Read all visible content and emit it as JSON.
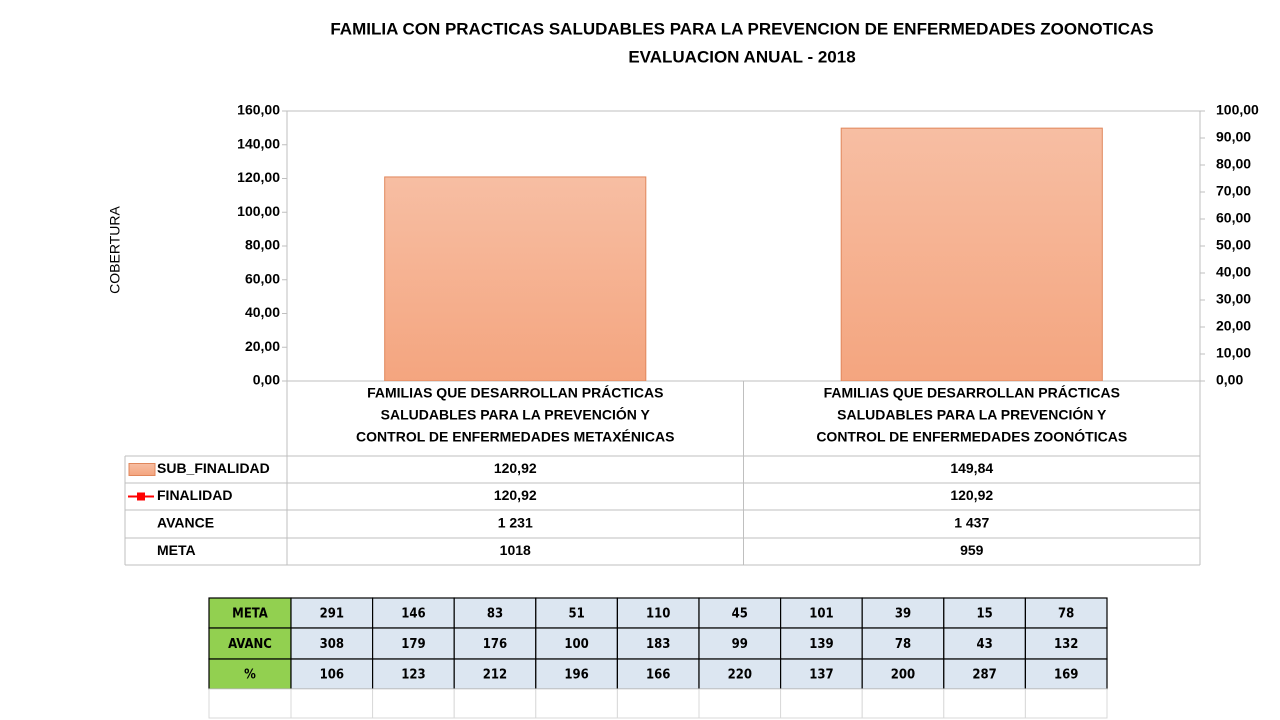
{
  "chart_data": {
    "type": "bar",
    "title": "FAMILIA CON PRACTICAS SALUDABLES  PARA LA PREVENCION DE ENFERMEDADES ZOONOTICAS",
    "subtitle": "EVALUACION ANUAL - 2018",
    "y_label": "COBERTURA",
    "categories": [
      [
        "FAMILIAS QUE DESARROLLAN PRÁCTICAS",
        "SALUDABLES PARA LA PREVENCIÓN Y",
        "CONTROL DE ENFERMEDADES METAXÉNICAS"
      ],
      [
        "FAMILIAS QUE DESARROLLAN PRÁCTICAS",
        "SALUDABLES PARA LA PREVENCIÓN Y",
        "CONTROL DE ENFERMEDADES ZOONÓTICAS"
      ]
    ],
    "series": [
      {
        "name": "SUB_FINALIDAD",
        "type": "bar",
        "color": "#f4a57f",
        "values": [
          120.92,
          149.84
        ],
        "value_labels": [
          "120,92",
          "149,84"
        ]
      },
      {
        "name": "FINALIDAD",
        "type": "line",
        "axis": "y2",
        "color": "#ff0000",
        "values": [
          120.92,
          120.92
        ],
        "value_labels": [
          "120,92",
          "120,92"
        ]
      }
    ],
    "table_rows": [
      {
        "name": "AVANCE",
        "values": [
          1231,
          1437
        ],
        "value_labels": [
          "1 231",
          "1 437"
        ]
      },
      {
        "name": "META",
        "values": [
          1018,
          959
        ]
      }
    ],
    "ylim": [
      0,
      160
    ],
    "yticks": [
      {
        "value": 0,
        "label": "0,00"
      },
      {
        "value": 20,
        "label": "20,00"
      },
      {
        "value": 40,
        "label": "40,00"
      },
      {
        "value": 60,
        "label": "60,00"
      },
      {
        "value": 80,
        "label": "80,00"
      },
      {
        "value": 100,
        "label": "100,00"
      },
      {
        "value": 120,
        "label": "120,00"
      },
      {
        "value": 140,
        "label": "140,00"
      },
      {
        "value": 160,
        "label": "160,00"
      }
    ],
    "y2lim": [
      0,
      100
    ],
    "y2ticks": [
      {
        "value": 0,
        "label": "0,00"
      },
      {
        "value": 10,
        "label": "10,00"
      },
      {
        "value": 20,
        "label": "20,00"
      },
      {
        "value": 30,
        "label": "30,00"
      },
      {
        "value": 40,
        "label": "40,00"
      },
      {
        "value": 50,
        "label": "50,00"
      },
      {
        "value": 60,
        "label": "60,00"
      },
      {
        "value": 70,
        "label": "70,00"
      },
      {
        "value": 80,
        "label": "80,00"
      },
      {
        "value": 90,
        "label": "90,00"
      },
      {
        "value": 100,
        "label": "100,00"
      }
    ]
  },
  "table": {
    "rows": [
      [
        "META",
        291,
        146,
        83,
        51,
        110,
        45,
        101,
        39,
        15,
        78
      ],
      [
        "AVANC",
        308,
        179,
        176,
        100,
        183,
        99,
        139,
        78,
        43,
        132
      ],
      [
        "%",
        106,
        123,
        212,
        196,
        166,
        220,
        137,
        200,
        287,
        169
      ]
    ]
  }
}
